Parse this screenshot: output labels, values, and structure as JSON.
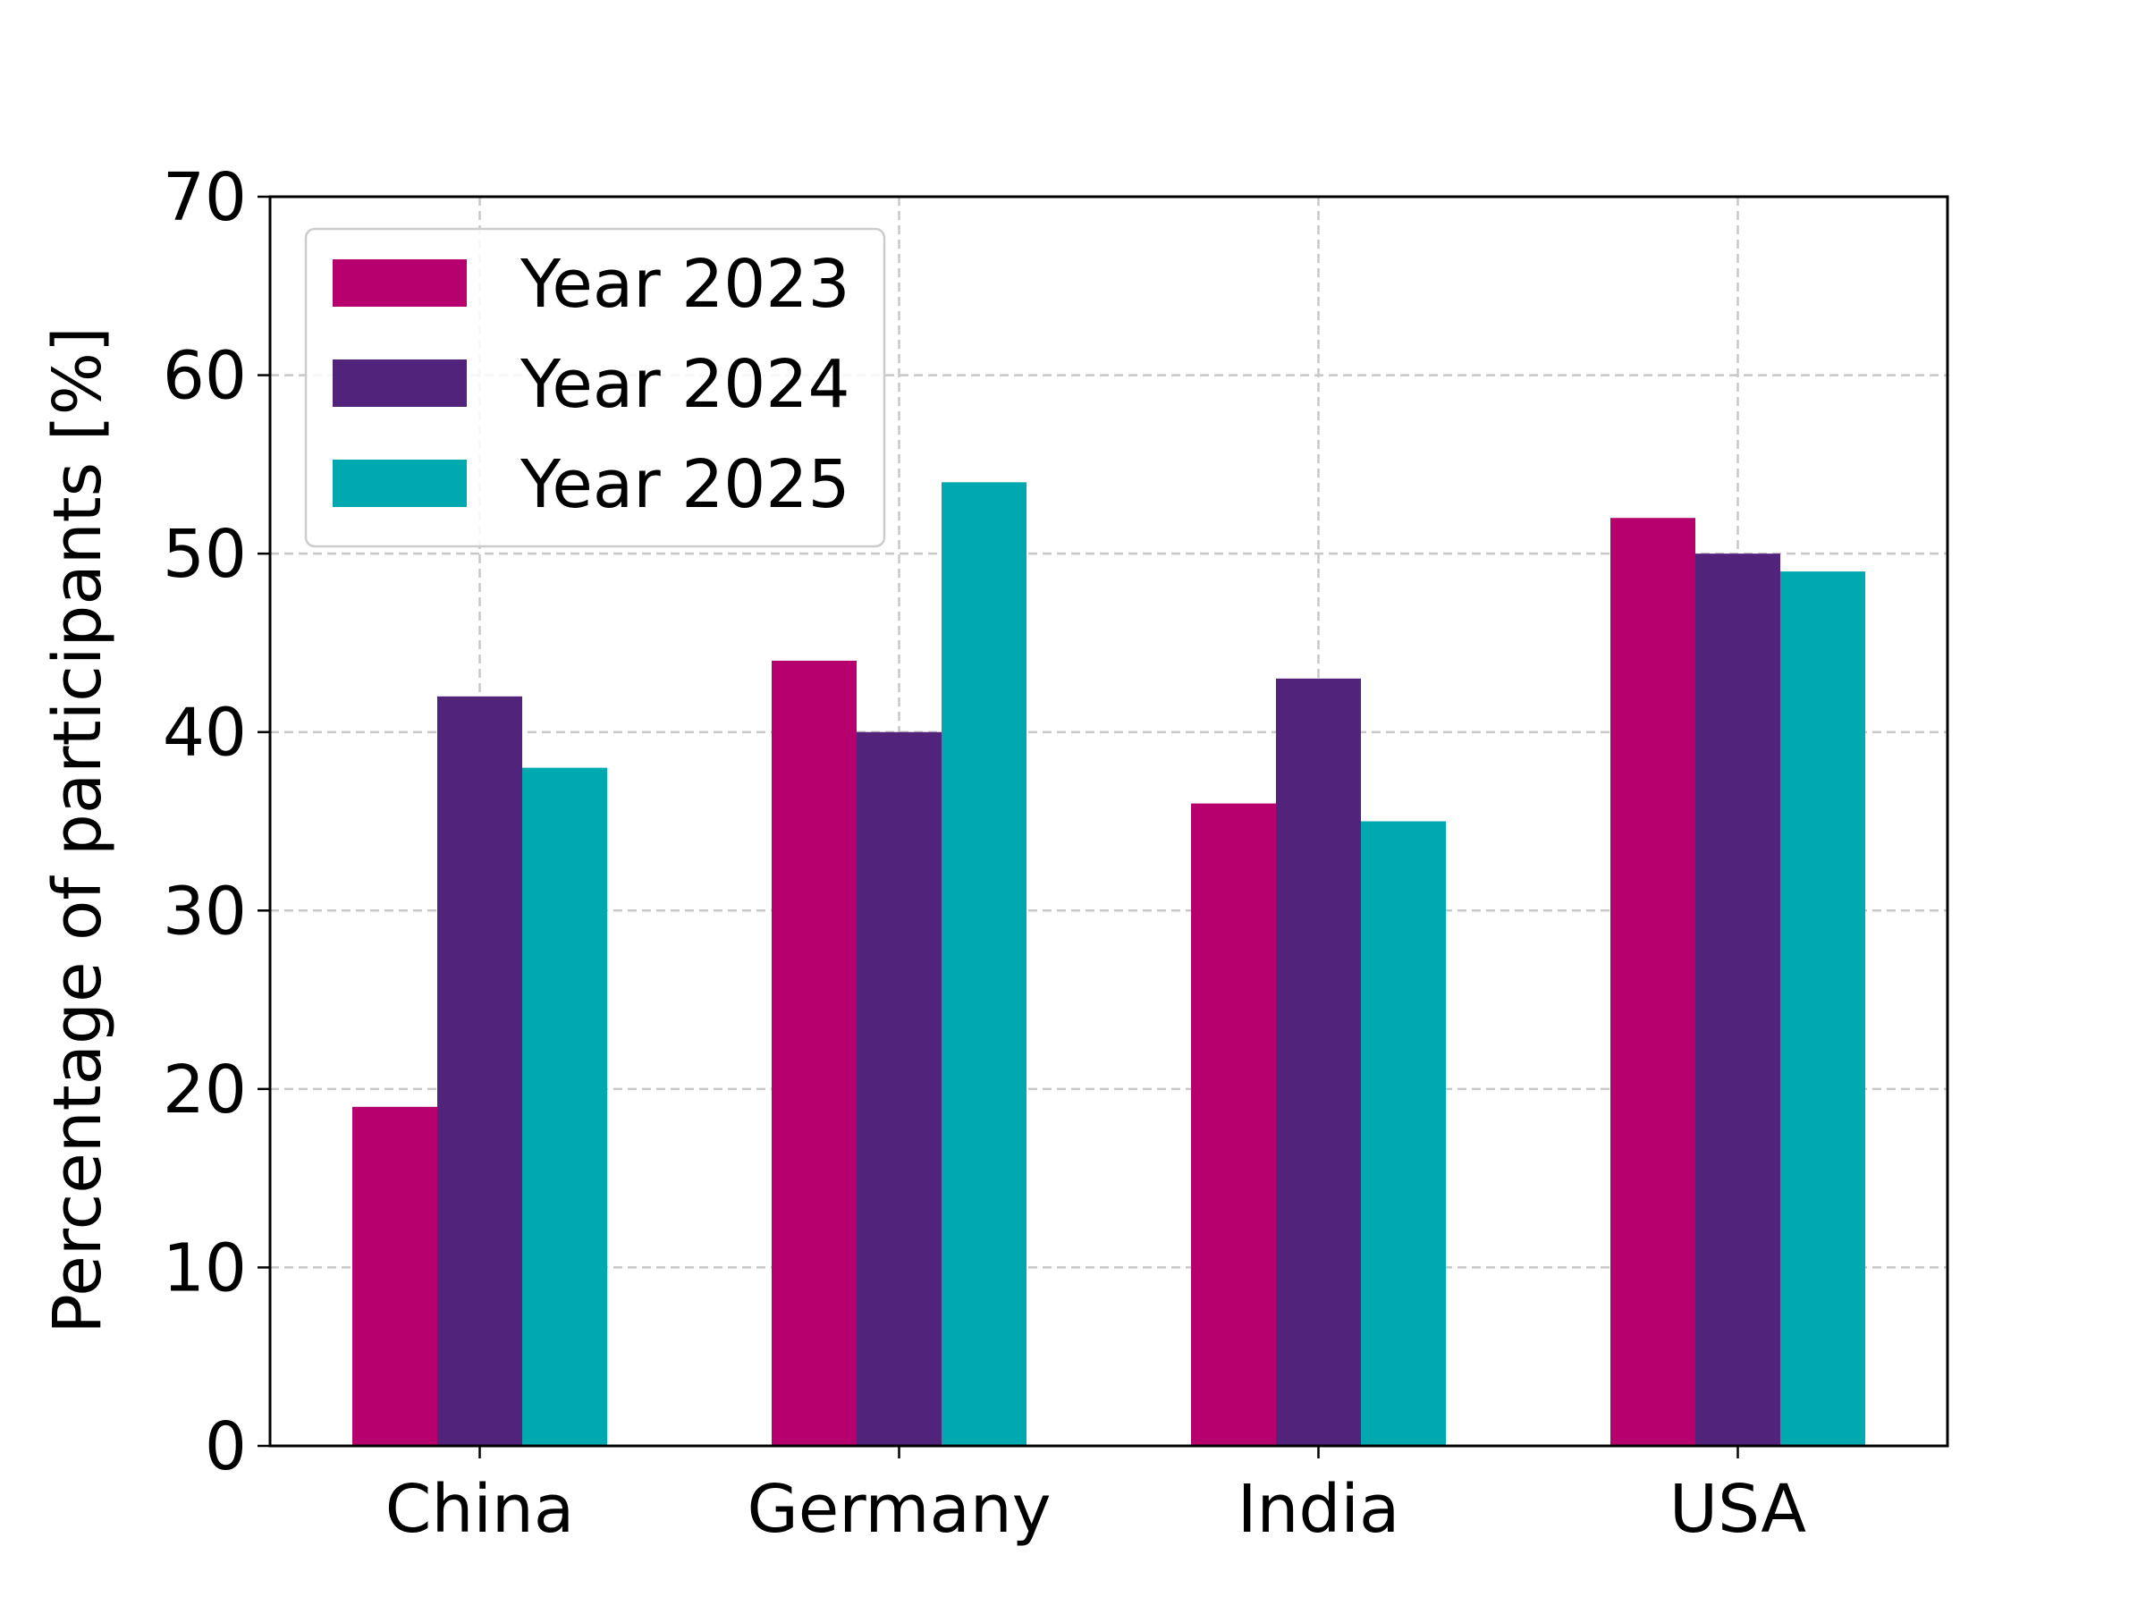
{
  "chart_data": {
    "type": "bar",
    "title": "",
    "xlabel": "",
    "ylabel": "Percentage of participants [%]",
    "categories": [
      "China",
      "Germany",
      "India",
      "USA"
    ],
    "series": [
      {
        "name": "Year 2023",
        "color": "#b5006e",
        "values": [
          19,
          44,
          36,
          52
        ]
      },
      {
        "name": "Year 2024",
        "color": "#51237a",
        "values": [
          42,
          40,
          43,
          50
        ]
      },
      {
        "name": "Year 2025",
        "color": "#00a8b0",
        "values": [
          38,
          54,
          35,
          49
        ]
      }
    ],
    "ylim": [
      0,
      70
    ],
    "yticks": [
      0,
      10,
      20,
      30,
      40,
      50,
      60,
      70
    ],
    "grid": true,
    "legend_position": "top-left"
  }
}
